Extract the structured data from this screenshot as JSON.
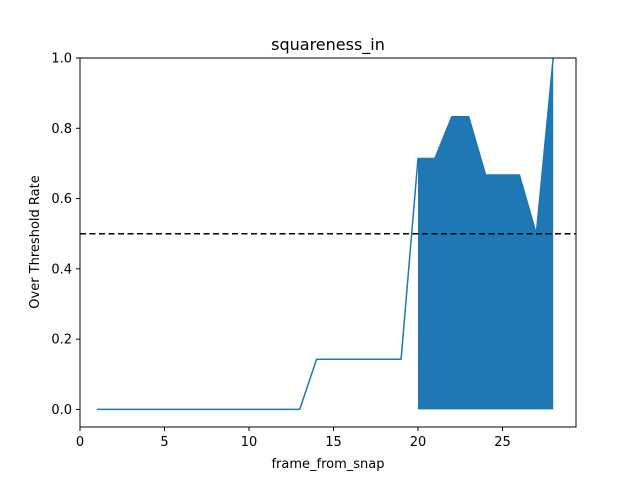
{
  "chart_data": {
    "type": "line",
    "title": "squareness_in",
    "xlabel": "frame_from_snap",
    "ylabel": "Over Threshold Rate",
    "xlim": [
      0,
      29.35
    ],
    "ylim": [
      -0.05,
      1.0
    ],
    "xticks": [
      0,
      5,
      10,
      15,
      20,
      25
    ],
    "yticks": [
      0.0,
      0.2,
      0.4,
      0.6,
      0.8,
      1.0
    ],
    "xtick_labels": [
      "0",
      "5",
      "10",
      "15",
      "20",
      "25"
    ],
    "ytick_labels": [
      "0.0",
      "0.2",
      "0.4",
      "0.6",
      "0.8",
      "1.0"
    ],
    "series": [
      {
        "x": [
          1,
          2,
          3,
          4,
          5,
          6,
          7,
          8,
          9,
          10,
          11,
          12,
          13,
          14,
          15,
          16,
          17,
          18,
          19,
          20,
          21,
          22,
          23,
          24,
          25,
          26,
          27,
          28
        ],
        "values": [
          0,
          0,
          0,
          0,
          0,
          0,
          0,
          0,
          0,
          0,
          0,
          0,
          0,
          0.143,
          0.143,
          0.143,
          0.143,
          0.143,
          0.143,
          0.714,
          0.714,
          0.833,
          0.833,
          0.667,
          0.667,
          0.667,
          0.5,
          1.0
        ],
        "color": "#1f77b4"
      }
    ],
    "fill_region": {
      "x_start": 20,
      "x_end": 28,
      "baseline": 0,
      "color": "#1f77b4"
    },
    "threshold": {
      "y": 0.5,
      "color": "#000000",
      "style": "dashed"
    },
    "grid": false,
    "legend": "none"
  }
}
